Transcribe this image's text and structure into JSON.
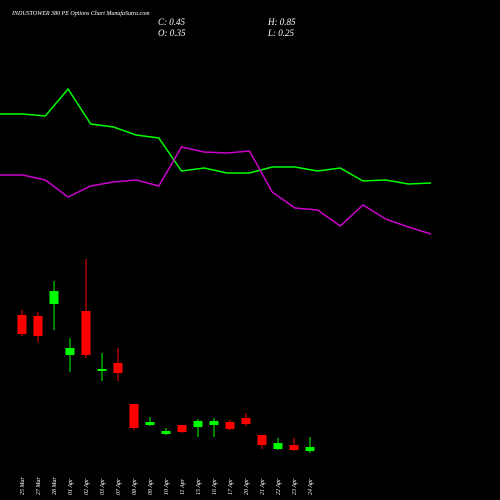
{
  "header": {
    "title": "INDUSTOWER 380 PE Options Chart MunafaSutra.com",
    "close": "C: 0.45",
    "open": "O: 0.35",
    "high": "H: 0.85",
    "low": "L: 0.25"
  },
  "chart_data": [
    {
      "type": "candlestick",
      "categories": [
        "25 Mar",
        "27 Mar",
        "28 Mar",
        "01 Apr",
        "02 Apr",
        "03 Apr",
        "07 Apr",
        "08 Apr",
        "09 Apr",
        "10 Apr",
        "11 Apr",
        "15 Apr",
        "16 Apr",
        "17 Apr",
        "20 Apr",
        "21 Apr",
        "22 Apr",
        "23 Apr",
        "24 Apr"
      ],
      "open": [
        14.5,
        14.4,
        15.6,
        10.5,
        14.9,
        8.9,
        9.7,
        5.6,
        3.5,
        2.6,
        3.5,
        3.3,
        3.5,
        3.8,
        4.2,
        2.5,
        1.1,
        1.5,
        0.9
      ],
      "high": [
        15.0,
        14.8,
        17.9,
        12.2,
        20.1,
        10.7,
        11.2,
        5.6,
        4.3,
        3.2,
        3.5,
        4.1,
        4.2,
        4.0,
        4.7,
        2.5,
        2.2,
        2.2,
        2.3
      ],
      "low": [
        12.4,
        11.8,
        13.0,
        8.8,
        10.2,
        7.9,
        7.9,
        3.0,
        3.4,
        2.5,
        2.7,
        2.3,
        2.3,
        3.0,
        3.4,
        1.1,
        1.0,
        0.9,
        0.7
      ],
      "close": [
        12.6,
        12.4,
        16.9,
        11.2,
        10.5,
        9.1,
        8.7,
        3.2,
        3.8,
        2.9,
        2.8,
        3.9,
        3.9,
        3.1,
        3.6,
        1.5,
        1.7,
        1.0,
        1.3
      ],
      "up_color": "#00ff00",
      "down_color": "#ff0000",
      "ylim": [
        0,
        21
      ]
    },
    {
      "type": "line",
      "categories": [
        null,
        null,
        null,
        null,
        null,
        null,
        null,
        null,
        null,
        null,
        null,
        null,
        null,
        null,
        null,
        null,
        null,
        null,
        null,
        null
      ],
      "series": [
        {
          "color": "#00ff00",
          "values": [
            13.6,
            13.6,
            13.4,
            16.1,
            12.6,
            12.3,
            11.5,
            11.2,
            7.9,
            8.2,
            7.7,
            7.7,
            8.3,
            8.3,
            7.9,
            8.2,
            6.9,
            7.0,
            6.6,
            6.7
          ]
        },
        {
          "color": "#cc00cc",
          "values": [
            7.5,
            7.5,
            7.0,
            5.3,
            6.4,
            6.8,
            7.0,
            6.4,
            10.3,
            9.8,
            9.7,
            9.9,
            5.8,
            4.2,
            4.0,
            2.4,
            4.5,
            3.1,
            2.3,
            1.6
          ]
        }
      ],
      "ylim": [
        0,
        20
      ]
    }
  ]
}
